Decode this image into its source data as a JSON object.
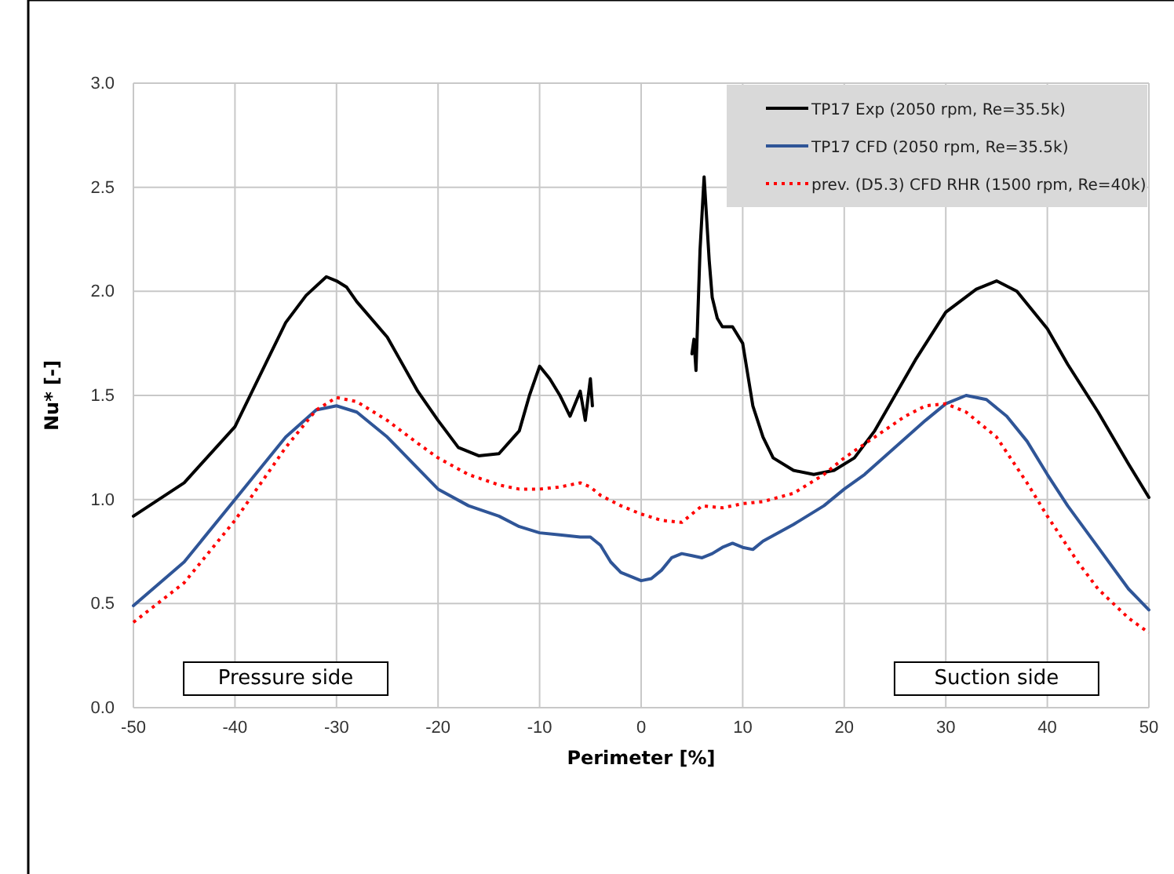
{
  "chart_data": {
    "type": "line",
    "xlabel": "Perimeter [%]",
    "ylabel": "Nu* [-]",
    "xlim": [
      -50,
      50
    ],
    "xticks": [
      -50,
      -40,
      -30,
      -20,
      -10,
      0,
      10,
      20,
      30,
      40,
      50
    ],
    "ylim": [
      0,
      3
    ],
    "yticks": [
      {
        "value": 0,
        "label": "0.0"
      },
      {
        "value": 0.5,
        "label": "0.5"
      },
      {
        "value": 1,
        "label": "1.0"
      },
      {
        "value": 1.5,
        "label": "1.5"
      },
      {
        "value": 2,
        "label": "2.0"
      },
      {
        "value": 2.5,
        "label": "2.5"
      },
      {
        "value": 3,
        "label": "3.0"
      }
    ],
    "grid": true,
    "legend": "top right",
    "marker": "none",
    "annotations": [
      "Pressure side",
      "Suction side"
    ],
    "series": [
      {
        "name": "TP17 Exp (2050 rpm, Re=35.5k)",
        "color": "#000000",
        "line_style": "solid",
        "x": [
          -50,
          -45,
          -40,
          -37,
          -35,
          -33,
          -31,
          -30,
          -29,
          -28,
          -25,
          -22,
          -20,
          -18,
          -16,
          -14,
          -12,
          -11,
          -10,
          -9,
          -8,
          -7,
          -6,
          -5.5,
          -5,
          -4.8,
          0,
          5,
          5.2,
          5.4,
          5.8,
          6.2,
          6.7,
          7,
          7.5,
          8,
          9,
          10,
          10.5,
          11,
          12,
          13,
          15,
          17,
          19,
          21,
          23,
          25,
          27,
          30,
          33,
          35,
          37,
          40,
          42,
          45,
          48,
          50
        ],
        "values": [
          0.92,
          1.08,
          1.35,
          1.65,
          1.85,
          1.98,
          2.07,
          2.05,
          2.02,
          1.95,
          1.78,
          1.52,
          1.38,
          1.25,
          1.21,
          1.22,
          1.33,
          1.5,
          1.64,
          1.58,
          1.5,
          1.4,
          1.52,
          1.38,
          1.58,
          1.45,
          null,
          1.7,
          1.77,
          1.62,
          2.2,
          2.55,
          2.15,
          1.97,
          1.87,
          1.83,
          1.83,
          1.75,
          1.6,
          1.45,
          1.3,
          1.2,
          1.14,
          1.12,
          1.14,
          1.2,
          1.33,
          1.5,
          1.67,
          1.9,
          2.01,
          2.05,
          2.0,
          1.82,
          1.65,
          1.42,
          1.17,
          1.01
        ]
      },
      {
        "name": "TP17 CFD (2050 rpm, Re=35.5k)",
        "color": "#2f5597",
        "line_style": "solid",
        "x": [
          -50,
          -45,
          -40,
          -35,
          -32,
          -30,
          -28,
          -25,
          -22,
          -20,
          -17,
          -14,
          -12,
          -10,
          -8,
          -6,
          -5,
          -4,
          -3,
          -2,
          0,
          1,
          2,
          3,
          4,
          5,
          6,
          7,
          8,
          9,
          10,
          11,
          12,
          15,
          18,
          20,
          22,
          25,
          28,
          30,
          32,
          34,
          36,
          38,
          40,
          42,
          45,
          48,
          50
        ],
        "values": [
          0.49,
          0.7,
          1.0,
          1.3,
          1.43,
          1.45,
          1.42,
          1.3,
          1.15,
          1.05,
          0.97,
          0.92,
          0.87,
          0.84,
          0.83,
          0.82,
          0.82,
          0.78,
          0.7,
          0.65,
          0.61,
          0.62,
          0.66,
          0.72,
          0.74,
          0.73,
          0.72,
          0.74,
          0.77,
          0.79,
          0.77,
          0.76,
          0.8,
          0.88,
          0.97,
          1.05,
          1.12,
          1.25,
          1.38,
          1.46,
          1.5,
          1.48,
          1.4,
          1.28,
          1.12,
          0.97,
          0.77,
          0.57,
          0.47
        ]
      },
      {
        "name": "prev. (D5.3) CFD RHR (1500 rpm, Re=40k)",
        "color": "#ff0000",
        "line_style": "dotted",
        "x": [
          -50,
          -45,
          -40,
          -35,
          -32,
          -30,
          -28,
          -25,
          -22,
          -20,
          -17,
          -14,
          -12,
          -10,
          -8,
          -6,
          -5,
          -4,
          -2,
          0,
          2,
          4,
          5,
          6,
          8,
          10,
          12,
          15,
          18,
          20,
          23,
          26,
          28,
          30,
          32,
          35,
          38,
          40,
          43,
          45,
          48,
          50
        ],
        "values": [
          0.41,
          0.6,
          0.9,
          1.25,
          1.43,
          1.49,
          1.47,
          1.38,
          1.27,
          1.2,
          1.12,
          1.07,
          1.05,
          1.05,
          1.06,
          1.08,
          1.06,
          1.02,
          0.97,
          0.93,
          0.9,
          0.89,
          0.93,
          0.97,
          0.96,
          0.98,
          0.99,
          1.03,
          1.12,
          1.2,
          1.3,
          1.4,
          1.45,
          1.46,
          1.42,
          1.3,
          1.08,
          0.92,
          0.7,
          0.57,
          0.43,
          0.36
        ]
      }
    ]
  }
}
